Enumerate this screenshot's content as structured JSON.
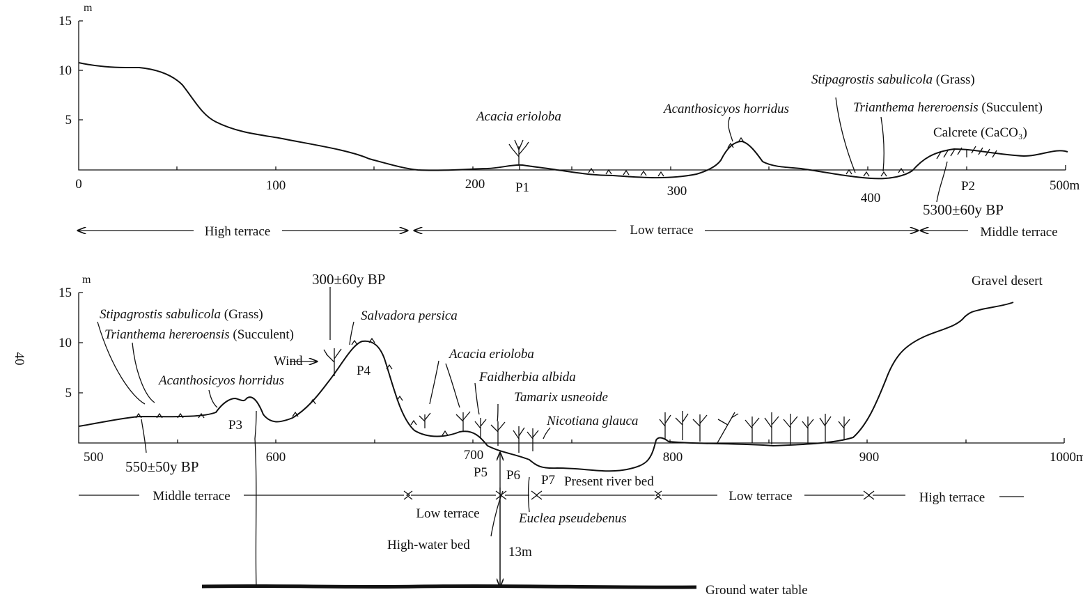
{
  "page_number": "40",
  "upper_profile": {
    "y_unit": "m",
    "y_ticks": [
      "15",
      "10",
      "5"
    ],
    "x_ticks": [
      "0",
      "100",
      "200",
      "300",
      "400",
      "500m"
    ],
    "plants": [
      {
        "name": "Acacia erioloba"
      },
      {
        "name": "Acanthosicyos horridus"
      },
      {
        "name": "Stipagrostis sabulicola",
        "form": "(Grass)"
      },
      {
        "name": "Trianthema hereroensis",
        "form": "(Succulent)"
      }
    ],
    "calcrete": "Calcrete (CaCO₃)",
    "points": [
      "P1",
      "P2"
    ],
    "date": "5300±60y BP",
    "zones": [
      "High terrace",
      "Low terrace",
      "Middle terrace"
    ]
  },
  "lower_profile": {
    "y_unit": "m",
    "y_ticks": [
      "15",
      "10",
      "5"
    ],
    "x_ticks": [
      "500",
      "600",
      "700",
      "800",
      "900",
      "1000m"
    ],
    "plants": [
      {
        "name": "Stipagrostis sabulicola",
        "form": "(Grass)"
      },
      {
        "name": "Trianthema hereroensis",
        "form": "(Succulent)"
      },
      {
        "name": "Acanthosicyos horridus"
      },
      {
        "name": "Salvadora persica"
      },
      {
        "name": "Acacia erioloba"
      },
      {
        "name": "Faidherbia albida"
      },
      {
        "name": "Tamarix usneoide"
      },
      {
        "name": "Nicotiana glauca"
      },
      {
        "name": "Euclea pseudebenus"
      }
    ],
    "points": [
      "P3",
      "P4",
      "P5",
      "P6",
      "P7"
    ],
    "dates": [
      "300±60y BP",
      "550±50y BP"
    ],
    "wind": "Wind",
    "gravel_desert": "Gravel desert",
    "present_river_bed": "Present river bed",
    "high_water_bed": "High-water bed",
    "depth": "13m",
    "ground_water_table": "Ground water table",
    "zones": [
      "Middle terrace",
      "Low terrace",
      "Low terrace",
      "High terrace"
    ]
  }
}
